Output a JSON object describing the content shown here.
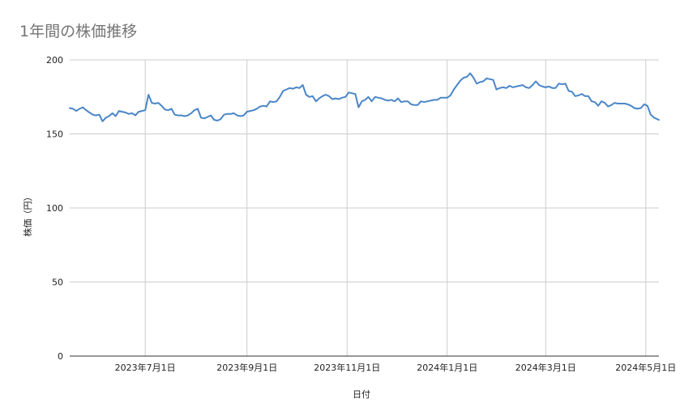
{
  "chart_data": {
    "type": "line",
    "title": "1年間の株価推移",
    "xlabel": "日付",
    "ylabel": "株価（円）",
    "ylim": [
      0,
      200
    ],
    "yticks": [
      0,
      50,
      100,
      150,
      200
    ],
    "xlim": [
      "2023-05-16",
      "2024-05-09"
    ],
    "xticks": [
      {
        "date": "2023-07-01",
        "label": "2023年7月1日"
      },
      {
        "date": "2023-09-01",
        "label": "2023年9月1日"
      },
      {
        "date": "2023-11-01",
        "label": "2023年11月1日"
      },
      {
        "date": "2024-01-01",
        "label": "2024年1月1日"
      },
      {
        "date": "2024-03-01",
        "label": "2024年3月1日"
      },
      {
        "date": "2024-05-01",
        "label": "2024年5月1日"
      }
    ],
    "grid": true,
    "legend": "none",
    "series_color": "#4a86c8",
    "series": [
      {
        "points": [
          [
            "2023-05-16",
            167.5
          ],
          [
            "2023-05-18",
            167
          ],
          [
            "2023-05-20",
            165.5
          ],
          [
            "2023-05-22",
            167
          ],
          [
            "2023-05-24",
            168
          ],
          [
            "2023-05-26",
            166
          ],
          [
            "2023-05-28",
            164.5
          ],
          [
            "2023-05-30",
            163
          ],
          [
            "2023-06-01",
            162.5
          ],
          [
            "2023-06-03",
            163
          ],
          [
            "2023-06-05",
            158.5
          ],
          [
            "2023-06-07",
            161
          ],
          [
            "2023-06-09",
            162
          ],
          [
            "2023-06-11",
            164
          ],
          [
            "2023-06-13",
            162
          ],
          [
            "2023-06-15",
            165.5
          ],
          [
            "2023-06-17",
            165
          ],
          [
            "2023-06-19",
            164.5
          ],
          [
            "2023-06-21",
            163.5
          ],
          [
            "2023-06-23",
            164
          ],
          [
            "2023-06-25",
            162.5
          ],
          [
            "2023-06-27",
            165
          ],
          [
            "2023-06-29",
            165.5
          ],
          [
            "2023-07-01",
            166
          ],
          [
            "2023-07-03",
            176.5
          ],
          [
            "2023-07-05",
            171
          ],
          [
            "2023-07-07",
            170.5
          ],
          [
            "2023-07-09",
            171
          ],
          [
            "2023-07-11",
            169
          ],
          [
            "2023-07-13",
            166.5
          ],
          [
            "2023-07-15",
            166
          ],
          [
            "2023-07-17",
            167
          ],
          [
            "2023-07-19",
            163
          ],
          [
            "2023-07-21",
            162.5
          ],
          [
            "2023-07-23",
            162.5
          ],
          [
            "2023-07-25",
            162
          ],
          [
            "2023-07-27",
            162.5
          ],
          [
            "2023-07-29",
            164
          ],
          [
            "2023-07-31",
            166
          ],
          [
            "2023-08-02",
            167
          ],
          [
            "2023-08-04",
            161
          ],
          [
            "2023-08-06",
            160.5
          ],
          [
            "2023-08-08",
            161.5
          ],
          [
            "2023-08-10",
            162.5
          ],
          [
            "2023-08-12",
            159.5
          ],
          [
            "2023-08-14",
            159
          ],
          [
            "2023-08-16",
            160
          ],
          [
            "2023-08-18",
            163
          ],
          [
            "2023-08-20",
            163.5
          ],
          [
            "2023-08-22",
            163.5
          ],
          [
            "2023-08-24",
            164
          ],
          [
            "2023-08-26",
            162.5
          ],
          [
            "2023-08-28",
            162
          ],
          [
            "2023-08-30",
            162.5
          ],
          [
            "2023-09-01",
            165
          ],
          [
            "2023-09-03",
            165.5
          ],
          [
            "2023-09-05",
            166
          ],
          [
            "2023-09-07",
            167
          ],
          [
            "2023-09-09",
            168.5
          ],
          [
            "2023-09-11",
            169
          ],
          [
            "2023-09-13",
            168.5
          ],
          [
            "2023-09-15",
            172
          ],
          [
            "2023-09-17",
            171.5
          ],
          [
            "2023-09-19",
            172
          ],
          [
            "2023-09-21",
            175
          ],
          [
            "2023-09-23",
            179
          ],
          [
            "2023-09-25",
            180
          ],
          [
            "2023-09-27",
            181
          ],
          [
            "2023-09-29",
            180.5
          ],
          [
            "2023-10-01",
            181.5
          ],
          [
            "2023-10-03",
            181
          ],
          [
            "2023-10-05",
            183
          ],
          [
            "2023-10-07",
            176.5
          ],
          [
            "2023-10-09",
            175
          ],
          [
            "2023-10-11",
            175.5
          ],
          [
            "2023-10-13",
            172
          ],
          [
            "2023-10-15",
            174
          ],
          [
            "2023-10-17",
            175.5
          ],
          [
            "2023-10-19",
            176.5
          ],
          [
            "2023-10-21",
            175.5
          ],
          [
            "2023-10-23",
            173.5
          ],
          [
            "2023-10-25",
            174
          ],
          [
            "2023-10-27",
            173.5
          ],
          [
            "2023-10-29",
            174.5
          ],
          [
            "2023-10-31",
            175
          ],
          [
            "2023-11-02",
            178
          ],
          [
            "2023-11-04",
            177.5
          ],
          [
            "2023-11-06",
            177
          ],
          [
            "2023-11-08",
            168
          ],
          [
            "2023-11-10",
            172
          ],
          [
            "2023-11-12",
            173
          ],
          [
            "2023-11-14",
            175
          ],
          [
            "2023-11-16",
            172
          ],
          [
            "2023-11-18",
            175
          ],
          [
            "2023-11-20",
            174.5
          ],
          [
            "2023-11-22",
            174
          ],
          [
            "2023-11-24",
            173
          ],
          [
            "2023-11-26",
            172.5
          ],
          [
            "2023-11-28",
            173
          ],
          [
            "2023-11-30",
            172
          ],
          [
            "2023-12-02",
            174
          ],
          [
            "2023-12-04",
            171.5
          ],
          [
            "2023-12-06",
            172
          ],
          [
            "2023-12-08",
            172
          ],
          [
            "2023-12-10",
            170
          ],
          [
            "2023-12-12",
            169.5
          ],
          [
            "2023-12-14",
            169.5
          ],
          [
            "2023-12-16",
            172
          ],
          [
            "2023-12-18",
            171.5
          ],
          [
            "2023-12-20",
            172
          ],
          [
            "2023-12-22",
            172.5
          ],
          [
            "2023-12-24",
            173
          ],
          [
            "2023-12-26",
            173
          ],
          [
            "2023-12-28",
            174.5
          ],
          [
            "2023-12-30",
            174.5
          ],
          [
            "2024-01-01",
            174.5
          ],
          [
            "2024-01-03",
            176
          ],
          [
            "2024-01-05",
            180
          ],
          [
            "2024-01-07",
            183
          ],
          [
            "2024-01-09",
            186
          ],
          [
            "2024-01-11",
            188
          ],
          [
            "2024-01-13",
            188.5
          ],
          [
            "2024-01-15",
            191
          ],
          [
            "2024-01-17",
            188
          ],
          [
            "2024-01-19",
            184
          ],
          [
            "2024-01-21",
            185
          ],
          [
            "2024-01-23",
            185.5
          ],
          [
            "2024-01-25",
            187.5
          ],
          [
            "2024-01-27",
            187
          ],
          [
            "2024-01-29",
            186.5
          ],
          [
            "2024-01-31",
            180
          ],
          [
            "2024-02-02",
            181
          ],
          [
            "2024-02-04",
            181.5
          ],
          [
            "2024-02-06",
            181
          ],
          [
            "2024-02-08",
            182.5
          ],
          [
            "2024-02-10",
            181.5
          ],
          [
            "2024-02-12",
            182
          ],
          [
            "2024-02-14",
            182.5
          ],
          [
            "2024-02-16",
            183
          ],
          [
            "2024-02-18",
            181.5
          ],
          [
            "2024-02-20",
            181
          ],
          [
            "2024-02-22",
            183
          ],
          [
            "2024-02-24",
            185.5
          ],
          [
            "2024-02-26",
            183
          ],
          [
            "2024-02-28",
            182
          ],
          [
            "2024-03-01",
            181.5
          ],
          [
            "2024-03-03",
            182
          ],
          [
            "2024-03-05",
            181
          ],
          [
            "2024-03-07",
            181
          ],
          [
            "2024-03-09",
            184
          ],
          [
            "2024-03-11",
            183.5
          ],
          [
            "2024-03-13",
            184
          ],
          [
            "2024-03-15",
            179
          ],
          [
            "2024-03-17",
            178.5
          ],
          [
            "2024-03-19",
            175.5
          ],
          [
            "2024-03-21",
            176
          ],
          [
            "2024-03-23",
            177
          ],
          [
            "2024-03-25",
            175.5
          ],
          [
            "2024-03-27",
            175.5
          ],
          [
            "2024-03-29",
            172
          ],
          [
            "2024-03-31",
            171.5
          ],
          [
            "2024-04-02",
            169
          ],
          [
            "2024-04-04",
            172
          ],
          [
            "2024-04-06",
            171
          ],
          [
            "2024-04-08",
            168.5
          ],
          [
            "2024-04-10",
            169.5
          ],
          [
            "2024-04-12",
            171
          ],
          [
            "2024-04-14",
            170.5
          ],
          [
            "2024-04-16",
            170.5
          ],
          [
            "2024-04-18",
            170.5
          ],
          [
            "2024-04-20",
            170
          ],
          [
            "2024-04-22",
            169
          ],
          [
            "2024-04-24",
            167.5
          ],
          [
            "2024-04-26",
            167
          ],
          [
            "2024-04-28",
            167.5
          ],
          [
            "2024-04-30",
            170
          ],
          [
            "2024-05-02",
            169
          ],
          [
            "2024-05-04",
            163
          ],
          [
            "2024-05-06",
            161
          ],
          [
            "2024-05-08",
            160
          ],
          [
            "2024-05-09",
            159.5
          ]
        ]
      }
    ]
  }
}
